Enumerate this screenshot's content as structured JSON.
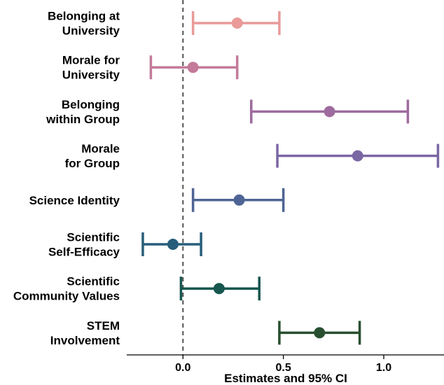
{
  "chart_data": {
    "type": "forest",
    "xlabel": "Estimates and 95% CI",
    "xlim": [
      -0.28,
      1.3
    ],
    "x_ticks": [
      0.0,
      0.5,
      1.0
    ],
    "x_tick_labels": [
      "0.0",
      "0.5",
      "1.0"
    ],
    "reference_line": 0,
    "items": [
      {
        "label_lines": [
          "Belonging at",
          "University"
        ],
        "estimate": 0.27,
        "lower": 0.05,
        "upper": 0.48,
        "color": "#E99A99"
      },
      {
        "label_lines": [
          "Morale for",
          "University"
        ],
        "estimate": 0.05,
        "lower": -0.16,
        "upper": 0.27,
        "color": "#C47A99"
      },
      {
        "label_lines": [
          "Belonging",
          "within Group"
        ],
        "estimate": 0.73,
        "lower": 0.34,
        "upper": 1.12,
        "color": "#9E6B9E"
      },
      {
        "label_lines": [
          "Morale",
          "for Group"
        ],
        "estimate": 0.87,
        "lower": 0.47,
        "upper": 1.27,
        "color": "#7A66A3"
      },
      {
        "label_lines": [
          "Science Identity"
        ],
        "estimate": 0.28,
        "lower": 0.05,
        "upper": 0.5,
        "color": "#4E6494"
      },
      {
        "label_lines": [
          "Scientific",
          "Self-Efficacy"
        ],
        "estimate": -0.05,
        "lower": -0.2,
        "upper": 0.09,
        "color": "#275E7A"
      },
      {
        "label_lines": [
          "Scientific",
          "Community Values"
        ],
        "estimate": 0.18,
        "lower": -0.01,
        "upper": 0.38,
        "color": "#16574F"
      },
      {
        "label_lines": [
          "STEM",
          "Involvement"
        ],
        "estimate": 0.68,
        "lower": 0.48,
        "upper": 0.88,
        "color": "#284F30"
      }
    ]
  }
}
